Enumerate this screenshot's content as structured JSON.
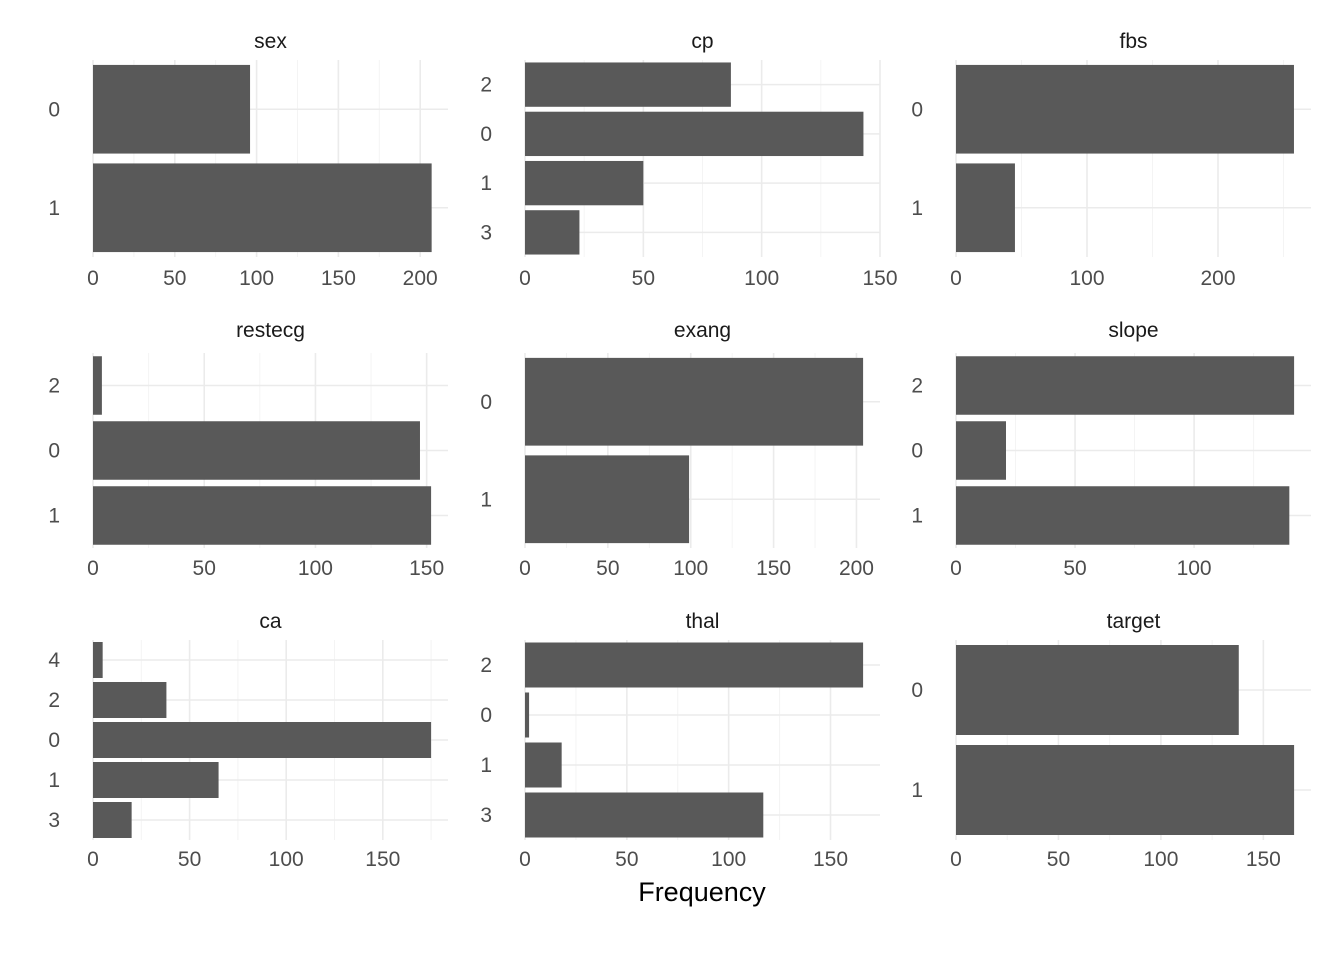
{
  "chart_data": {
    "type": "bar",
    "orientation": "horizontal",
    "facet_layout": "3x3 grid, independent scales",
    "xlabel": "Frequency",
    "ylabel": "",
    "bar_color": "#595959",
    "grid_color": "#ebebeb",
    "grid": true,
    "legend": "none",
    "facets": [
      {
        "title": "sex",
        "categories": [
          "0",
          "1"
        ],
        "values": [
          96,
          207
        ],
        "xlim": [
          0,
          217
        ],
        "xticks": [
          0,
          50,
          100,
          150,
          200
        ]
      },
      {
        "title": "cp",
        "categories": [
          "2",
          "0",
          "1",
          "3"
        ],
        "values": [
          87,
          143,
          50,
          23
        ],
        "xlim": [
          0,
          150
        ],
        "xticks": [
          0,
          50,
          100,
          150
        ]
      },
      {
        "title": "fbs",
        "categories": [
          "0",
          "1"
        ],
        "values": [
          258,
          45
        ],
        "xlim": [
          0,
          271
        ],
        "xticks": [
          0,
          100,
          200
        ]
      },
      {
        "title": "restecg",
        "categories": [
          "2",
          "0",
          "1"
        ],
        "values": [
          4,
          147,
          152
        ],
        "xlim": [
          0,
          159.6
        ],
        "xticks": [
          0,
          50,
          100,
          150
        ]
      },
      {
        "title": "exang",
        "categories": [
          "0",
          "1"
        ],
        "values": [
          204,
          99
        ],
        "xlim": [
          0,
          214.2
        ],
        "xticks": [
          0,
          50,
          100,
          150,
          200
        ]
      },
      {
        "title": "slope",
        "categories": [
          "2",
          "0",
          "1"
        ],
        "values": [
          142,
          21,
          140
        ],
        "xlim": [
          0,
          149.1
        ],
        "xticks": [
          0,
          50,
          100
        ]
      },
      {
        "title": "ca",
        "categories": [
          "4",
          "2",
          "0",
          "1",
          "3"
        ],
        "values": [
          5,
          38,
          175,
          65,
          20
        ],
        "xlim": [
          0,
          183.75
        ],
        "xticks": [
          0,
          50,
          100,
          150
        ]
      },
      {
        "title": "thal",
        "categories": [
          "2",
          "0",
          "1",
          "3"
        ],
        "values": [
          166,
          2,
          18,
          117
        ],
        "xlim": [
          0,
          174.3
        ],
        "xticks": [
          0,
          50,
          100,
          150
        ]
      },
      {
        "title": "target",
        "categories": [
          "0",
          "1"
        ],
        "values": [
          138,
          165
        ],
        "xlim": [
          0,
          173.25
        ],
        "xticks": [
          0,
          50,
          100,
          150
        ]
      }
    ]
  }
}
